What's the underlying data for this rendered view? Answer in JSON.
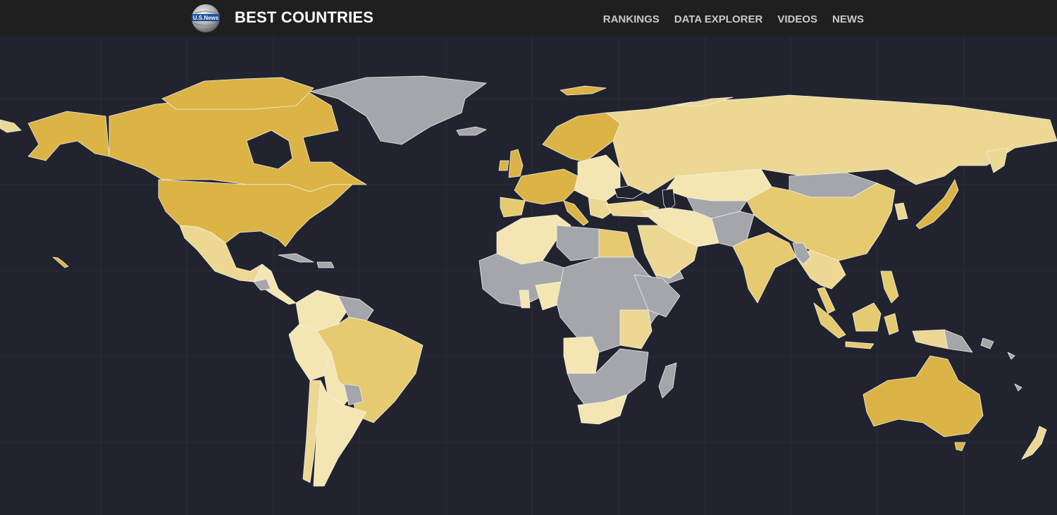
{
  "header": {
    "logo_text": "U.S.News",
    "brand": "BEST COUNTRIES",
    "nav": [
      "RANKINGS",
      "DATA EXPLORER",
      "VIDEOS",
      "NEWS"
    ]
  },
  "colors": {
    "header_bg": "#1f1f1f",
    "map_bg": "#21232f",
    "gridline": "#2b2e3b",
    "country_border": "#f1efe6",
    "no_data": "#a5a6ab",
    "rank_tier_1": "#dbb445",
    "rank_tier_2": "#e5ca6f",
    "rank_tier_3": "#ecd893",
    "rank_tier_4": "#f3e6b2"
  },
  "map": {
    "type": "choropleth world map",
    "legend": "none shown"
  }
}
